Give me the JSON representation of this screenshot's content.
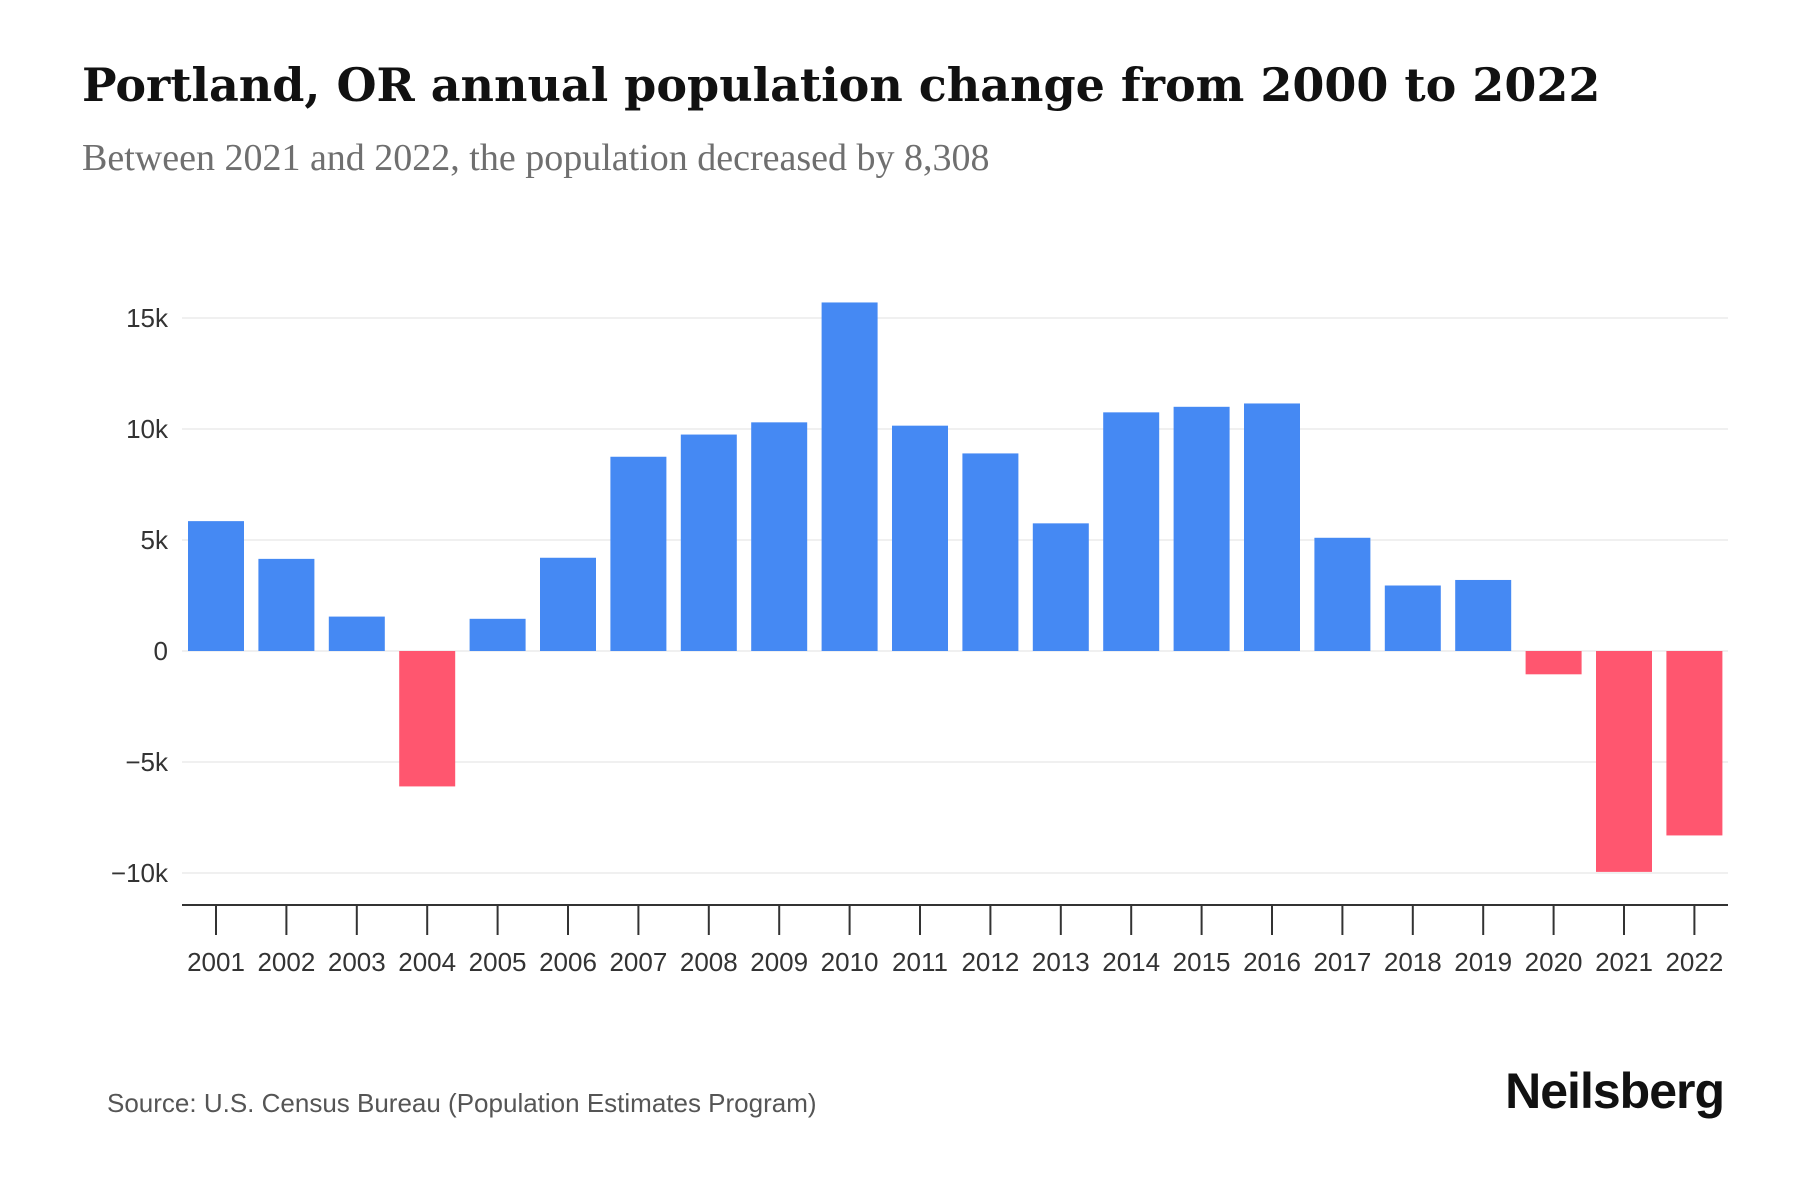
{
  "header": {
    "title": "Portland, OR annual population change from 2000 to 2022",
    "subtitle": "Between 2021 and 2022, the population decreased by 8,308"
  },
  "footer": {
    "source": "Source: U.S. Census Bureau (Population Estimates Program)",
    "brand": "Neilsberg"
  },
  "colors": {
    "positive": "#4589f3",
    "negative": "#ff566f",
    "grid": "#ececec",
    "axis": "#333333"
  },
  "chart_data": {
    "type": "bar",
    "title": "Portland, OR annual population change from 2000 to 2022",
    "subtitle": "Between 2021 and 2022, the population decreased by 8,308",
    "xlabel": "",
    "ylabel": "",
    "categories": [
      "2001",
      "2002",
      "2003",
      "2004",
      "2005",
      "2006",
      "2007",
      "2008",
      "2009",
      "2010",
      "2011",
      "2012",
      "2013",
      "2014",
      "2015",
      "2016",
      "2017",
      "2018",
      "2019",
      "2020",
      "2021",
      "2022"
    ],
    "values": [
      5850,
      4150,
      1550,
      -6100,
      1450,
      4200,
      8750,
      9750,
      10300,
      15700,
      10150,
      8900,
      5750,
      10750,
      11000,
      11150,
      5100,
      2950,
      3200,
      -1050,
      -9950,
      -8308
    ],
    "ylim": [
      -11500,
      16000
    ],
    "yticks": [
      15000,
      10000,
      5000,
      0,
      -5000,
      -10000
    ],
    "ytick_labels": [
      "15k",
      "10k",
      "5k",
      "0",
      "−5k",
      "−10k"
    ],
    "grid": true,
    "legend": "none"
  }
}
